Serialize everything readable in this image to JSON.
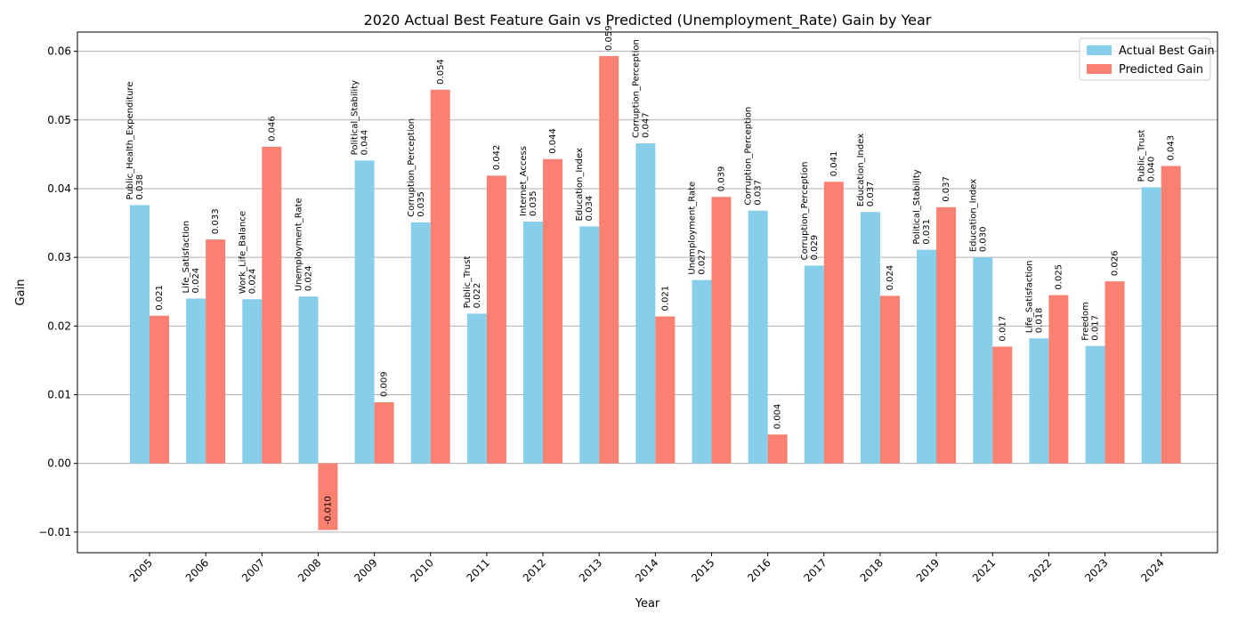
{
  "chart_data": {
    "type": "bar",
    "title": "2020 Actual Best Feature Gain vs Predicted (Unemployment_Rate) Gain by Year",
    "xlabel": "Year",
    "ylabel": "Gain",
    "ylim": [
      -0.013,
      0.0628
    ],
    "yticks": [
      -0.01,
      0.0,
      0.01,
      0.02,
      0.03,
      0.04,
      0.05,
      0.06
    ],
    "ytick_labels": [
      "−0.01",
      "0.00",
      "0.01",
      "0.02",
      "0.03",
      "0.04",
      "0.05",
      "0.06"
    ],
    "grid": "horizontal",
    "legend_position": "top-right",
    "categories": [
      "2005",
      "2006",
      "2007",
      "2008",
      "2009",
      "2010",
      "2011",
      "2012",
      "2013",
      "2014",
      "2015",
      "2016",
      "2017",
      "2018",
      "2019",
      "2021",
      "2022",
      "2023",
      "2024"
    ],
    "features": [
      "Public_Health_Expenditure",
      "Life_Satisfaction",
      "Work_Life_Balance",
      "Unemployment_Rate",
      "Political_Stability",
      "Corruption_Perception",
      "Public_Trust",
      "Internet_Access",
      "Education_Index",
      "Corruption_Perception",
      "Unemployment_Rate",
      "Corruption_Perception",
      "Corruption_Perception",
      "Education_Index",
      "Political_Stability",
      "Education_Index",
      "Life_Satisfaction",
      "Freedom",
      "Public_Trust"
    ],
    "series": [
      {
        "name": "Actual Best Gain",
        "color": "#87ceeb",
        "values": [
          0.0376,
          0.024,
          0.0239,
          0.0243,
          0.0441,
          0.0351,
          0.0218,
          0.0352,
          0.0345,
          0.0466,
          0.0267,
          0.0368,
          0.0288,
          0.0366,
          0.0311,
          0.03,
          0.0182,
          0.0171,
          0.0402
        ],
        "labels": [
          "0.038",
          "0.024",
          "0.024",
          "0.024",
          "0.044",
          "0.035",
          "0.022",
          "0.035",
          "0.034",
          "0.047",
          "0.027",
          "0.037",
          "0.029",
          "0.037",
          "0.031",
          "0.030",
          "0.018",
          "0.017",
          "0.040"
        ]
      },
      {
        "name": "Predicted Gain",
        "color": "#fa8072",
        "values": [
          0.0215,
          0.0326,
          0.0461,
          -0.0097,
          0.0089,
          0.0544,
          0.0419,
          0.0443,
          0.0593,
          0.0214,
          0.0388,
          0.0042,
          0.041,
          0.0244,
          0.0373,
          0.017,
          0.0245,
          0.0265,
          0.0433
        ],
        "labels": [
          "0.021",
          "0.033",
          "0.046",
          "-0.010",
          "0.009",
          "0.054",
          "0.042",
          "0.044",
          "0.059",
          "0.021",
          "0.039",
          "0.004",
          "0.041",
          "0.024",
          "0.037",
          "0.017",
          "0.025",
          "0.026",
          "0.043"
        ]
      }
    ]
  }
}
